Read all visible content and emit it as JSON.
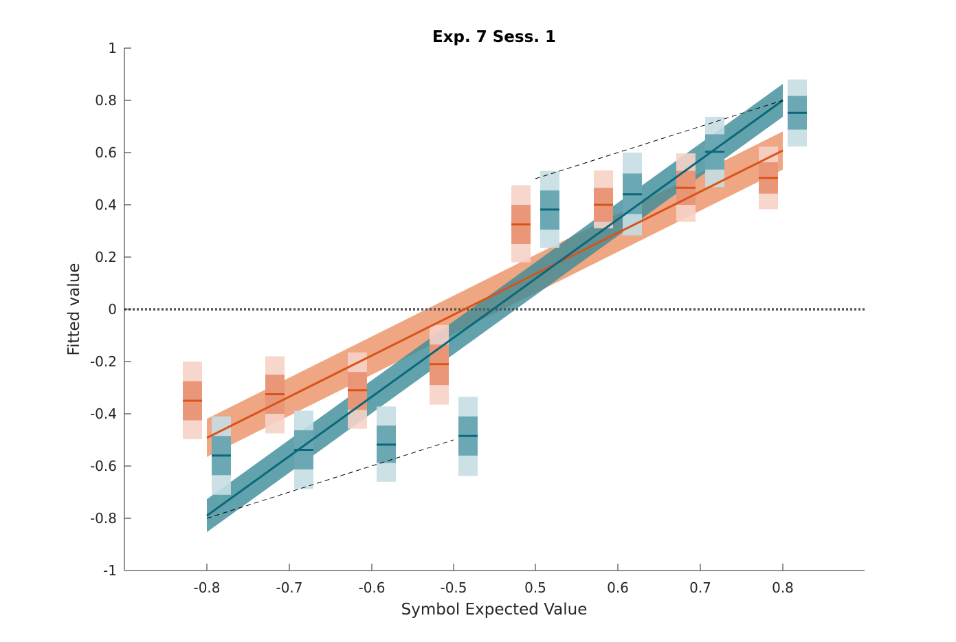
{
  "chart_data": {
    "type": "scatter",
    "title": "Exp. 7 Sess. 1",
    "xlabel": "Symbol Expected Value",
    "ylabel": "Fitted value",
    "x_tick_labels": [
      "-0.8",
      "-0.7",
      "-0.6",
      "-0.5",
      "0.5",
      "0.6",
      "0.7",
      "0.8"
    ],
    "y_tick_labels": [
      "1",
      "0.8",
      "0.6",
      "0.4",
      "0.2",
      "0",
      "-0.2",
      "-0.4",
      "-0.6",
      "-0.8",
      "-1"
    ],
    "ylim": [
      -1,
      1
    ],
    "grid": false,
    "reference_line": {
      "y": 0,
      "style": "dotted",
      "color": "#555555"
    },
    "colors": {
      "orange": "#D95319",
      "orange_band": "#E8885A",
      "orange_inner": "#E89070",
      "orange_outer": "#F6D2C6",
      "teal": "#0A6878",
      "teal_band": "#3B8B99",
      "teal_inner": "#62A2AE",
      "teal_outer": "#C5DEE3"
    },
    "series": [
      {
        "color": "orange",
        "points": [
          {
            "x": "-0.8",
            "y": -0.35,
            "inner": [
              -0.425,
              -0.275
            ],
            "outer": [
              -0.497,
              -0.2
            ]
          },
          {
            "x": "-0.7",
            "y": -0.325,
            "inner": [
              -0.4,
              -0.25
            ],
            "outer": [
              -0.475,
              -0.18
            ]
          },
          {
            "x": "-0.6",
            "y": -0.31,
            "inner": [
              -0.385,
              -0.24
            ],
            "outer": [
              -0.457,
              -0.165
            ]
          },
          {
            "x": "-0.5",
            "y": -0.21,
            "inner": [
              -0.29,
              -0.135
            ],
            "outer": [
              -0.365,
              -0.06
            ]
          },
          {
            "x": "0.5",
            "y": 0.325,
            "inner": [
              0.25,
              0.4
            ],
            "outer": [
              0.18,
              0.475
            ]
          },
          {
            "x": "0.6",
            "y": 0.4,
            "inner": [
              0.335,
              0.465
            ],
            "outer": [
              0.31,
              0.532
            ]
          },
          {
            "x": "0.7",
            "y": 0.465,
            "inner": [
              0.4,
              0.53
            ],
            "outer": [
              0.335,
              0.597
            ]
          },
          {
            "x": "0.8",
            "y": 0.503,
            "inner": [
              0.443,
              0.563
            ],
            "outer": [
              0.383,
              0.623
            ]
          }
        ],
        "fit": {
          "x": [
            "-0.8",
            "0.8"
          ],
          "y": [
            -0.492,
            0.608
          ],
          "band_halfwidth": 0.073
        }
      },
      {
        "color": "teal",
        "points": [
          {
            "x": "-0.8",
            "y": -0.56,
            "inner": [
              -0.635,
              -0.485
            ],
            "outer": [
              -0.71,
              -0.41
            ]
          },
          {
            "x": "-0.7",
            "y": -0.538,
            "inner": [
              -0.613,
              -0.463
            ],
            "outer": [
              -0.688,
              -0.388
            ]
          },
          {
            "x": "-0.6",
            "y": -0.518,
            "inner": [
              -0.588,
              -0.445
            ],
            "outer": [
              -0.66,
              -0.372
            ]
          },
          {
            "x": "-0.5",
            "y": -0.485,
            "inner": [
              -0.56,
              -0.41
            ],
            "outer": [
              -0.638,
              -0.335
            ]
          },
          {
            "x": "0.5",
            "y": 0.382,
            "inner": [
              0.305,
              0.455
            ],
            "outer": [
              0.235,
              0.53
            ]
          },
          {
            "x": "0.6",
            "y": 0.44,
            "inner": [
              0.365,
              0.52
            ],
            "outer": [
              0.283,
              0.6
            ]
          },
          {
            "x": "0.7",
            "y": 0.603,
            "inner": [
              0.535,
              0.67
            ],
            "outer": [
              0.468,
              0.737
            ]
          },
          {
            "x": "0.8",
            "y": 0.752,
            "inner": [
              0.688,
              0.817
            ],
            "outer": [
              0.623,
              0.88
            ]
          }
        ],
        "fit": {
          "x": [
            "-0.8",
            "0.8"
          ],
          "y": [
            -0.79,
            0.8
          ],
          "band_halfwidth": 0.063
        }
      }
    ],
    "dashed_lines": [
      {
        "x": [
          "-0.8",
          "-0.5"
        ],
        "y": [
          -0.8,
          -0.5
        ]
      },
      {
        "x": [
          "0.5",
          "0.8"
        ],
        "y": [
          0.5,
          0.8
        ]
      }
    ]
  }
}
